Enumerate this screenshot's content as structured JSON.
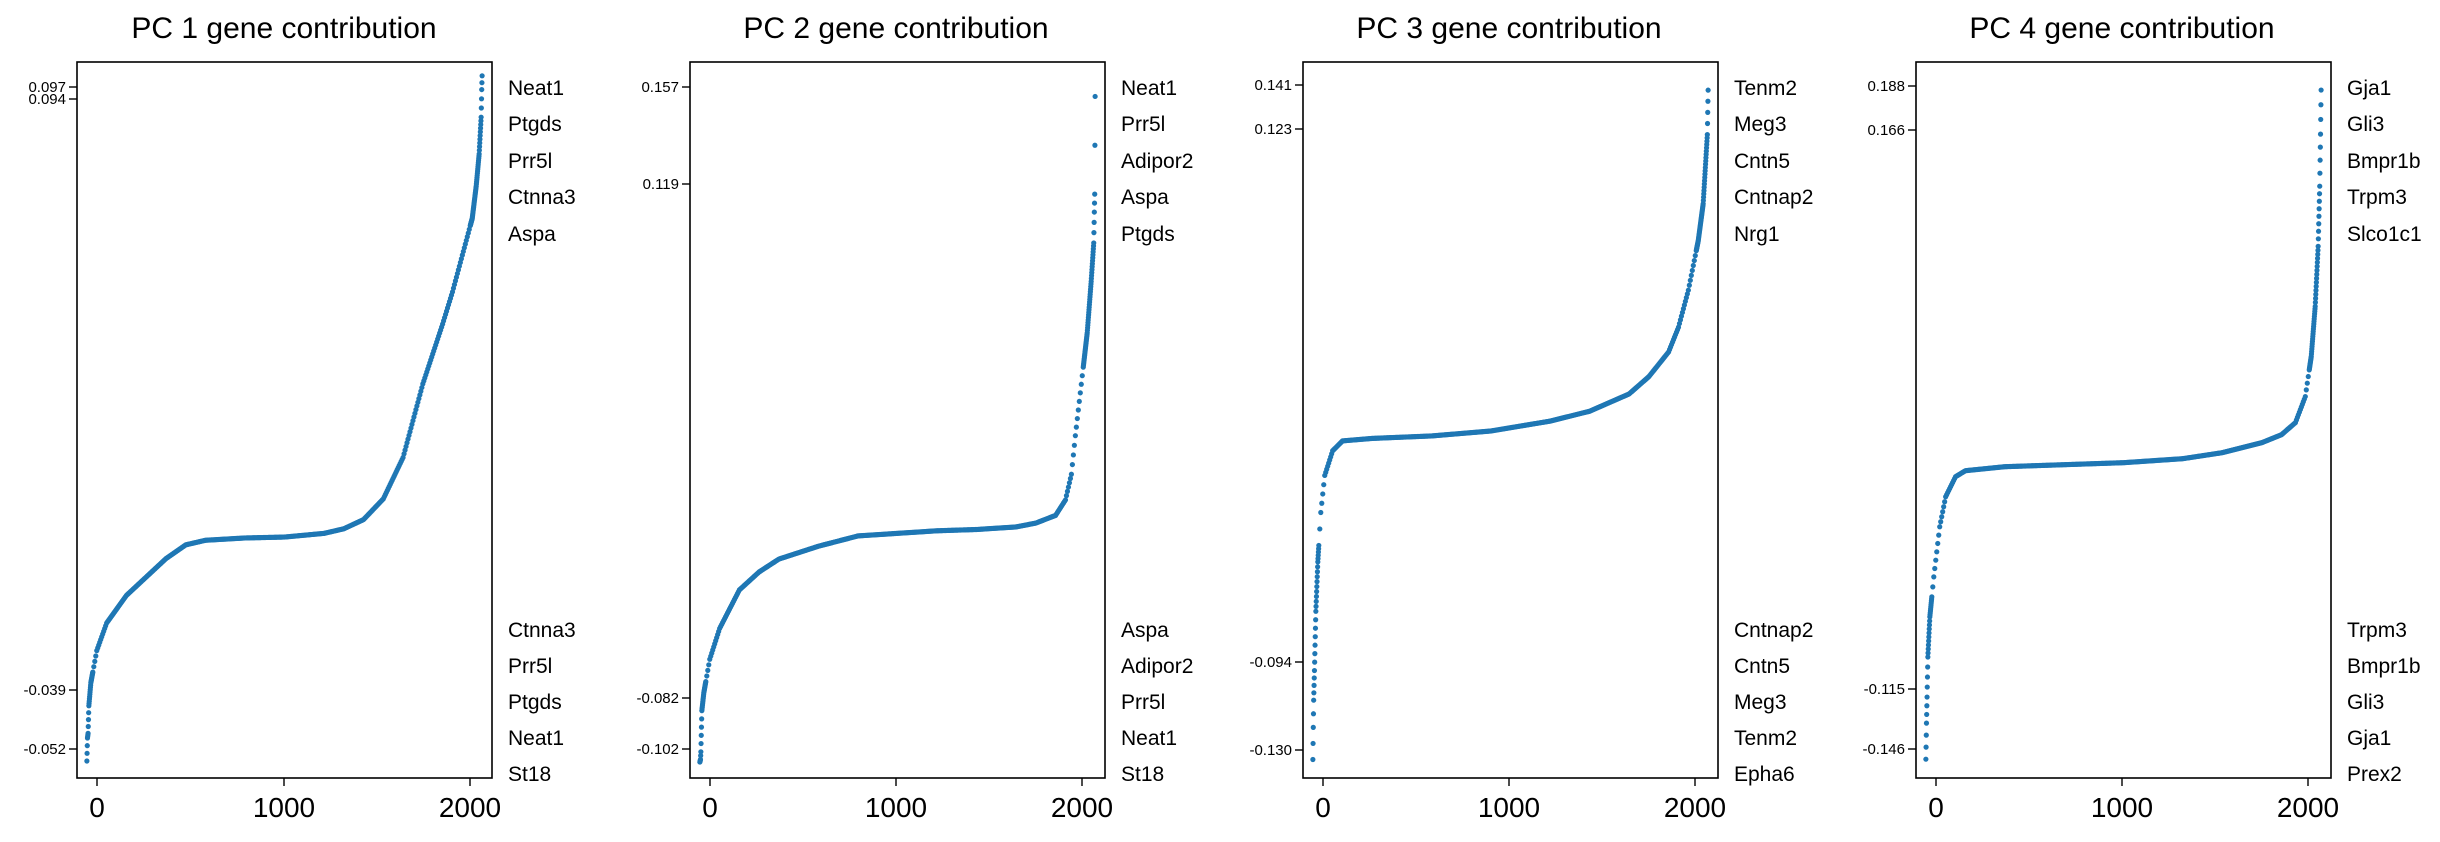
{
  "chart_data": [
    {
      "type": "scatter",
      "title": "PC 1 gene contribution",
      "xlim": [
        -50,
        2050
      ],
      "ylim": [
        -0.0557,
        0.1
      ],
      "xticks": [
        "0",
        "1000",
        "2000"
      ],
      "yticks": [
        "0.097",
        "0.094",
        "-0.039",
        "-0.052"
      ],
      "top_genes": [
        "Neat1",
        "Ptgds",
        "Prr5l",
        "Ctnna3",
        "Aspa"
      ],
      "bottom_genes": [
        "Ctnna3",
        "Prr5l",
        "Ptgds",
        "Neat1",
        "St18"
      ],
      "curve": [
        [
          0,
          -0.052
        ],
        [
          3,
          -0.047
        ],
        [
          6,
          -0.046
        ],
        [
          10,
          -0.04
        ],
        [
          20,
          -0.035
        ],
        [
          50,
          -0.028
        ],
        [
          100,
          -0.022
        ],
        [
          200,
          -0.016
        ],
        [
          300,
          -0.012
        ],
        [
          400,
          -0.008
        ],
        [
          500,
          -0.005
        ],
        [
          600,
          -0.004
        ],
        [
          800,
          -0.0035
        ],
        [
          1000,
          -0.0033
        ],
        [
          1200,
          -0.0025
        ],
        [
          1300,
          -0.0015
        ],
        [
          1400,
          0.0005
        ],
        [
          1500,
          0.005
        ],
        [
          1600,
          0.014
        ],
        [
          1700,
          0.03
        ],
        [
          1800,
          0.043
        ],
        [
          1850,
          0.05
        ],
        [
          1900,
          0.058
        ],
        [
          1950,
          0.066
        ],
        [
          1970,
          0.073
        ],
        [
          1985,
          0.08
        ],
        [
          1995,
          0.088
        ],
        [
          1998,
          0.094
        ],
        [
          2000,
          0.097
        ]
      ],
      "color": "#1f77b4"
    },
    {
      "type": "scatter",
      "title": "PC 2 gene contribution",
      "xlim": [
        -50,
        2050
      ],
      "ylim": [
        -0.1082,
        0.1704
      ],
      "xticks": [
        "0",
        "1000",
        "2000"
      ],
      "yticks": [
        "0.157",
        "0.119",
        "-0.082",
        "-0.102"
      ],
      "top_genes": [
        "Neat1",
        "Prr5l",
        "Adipor2",
        "Aspa",
        "Ptgds"
      ],
      "bottom_genes": [
        "Aspa",
        "Adipor2",
        "Prr5l",
        "Neat1",
        "St18"
      ],
      "curve": [
        [
          0,
          -0.102
        ],
        [
          3,
          -0.101
        ],
        [
          5,
          -0.098
        ],
        [
          10,
          -0.082
        ],
        [
          20,
          -0.075
        ],
        [
          50,
          -0.062
        ],
        [
          100,
          -0.05
        ],
        [
          200,
          -0.035
        ],
        [
          300,
          -0.028
        ],
        [
          400,
          -0.023
        ],
        [
          600,
          -0.018
        ],
        [
          800,
          -0.014
        ],
        [
          1000,
          -0.013
        ],
        [
          1200,
          -0.012
        ],
        [
          1400,
          -0.0115
        ],
        [
          1600,
          -0.0105
        ],
        [
          1700,
          -0.009
        ],
        [
          1800,
          -0.006
        ],
        [
          1850,
          0.0
        ],
        [
          1880,
          0.01
        ],
        [
          1900,
          0.025
        ],
        [
          1930,
          0.045
        ],
        [
          1960,
          0.065
        ],
        [
          1980,
          0.085
        ],
        [
          1993,
          0.1
        ],
        [
          1996,
          0.112
        ],
        [
          1998,
          0.119
        ],
        [
          2000,
          0.157
        ]
      ],
      "color": "#1f77b4"
    },
    {
      "type": "scatter",
      "title": "PC 3 gene contribution",
      "xlim": [
        -50,
        2050
      ],
      "ylim": [
        -0.1375,
        0.1524
      ],
      "xticks": [
        "0",
        "1000",
        "2000"
      ],
      "yticks": [
        "0.141",
        "0.123",
        "-0.094",
        "-0.130"
      ],
      "top_genes": [
        "Tenm2",
        "Meg3",
        "Cntn5",
        "Cntnap2",
        "Nrg1"
      ],
      "bottom_genes": [
        "Cntnap2",
        "Cntn5",
        "Meg3",
        "Tenm2",
        "Epha6"
      ],
      "curve": [
        [
          0,
          -0.13
        ],
        [
          2,
          -0.117
        ],
        [
          4,
          -0.106
        ],
        [
          8,
          -0.094
        ],
        [
          15,
          -0.07
        ],
        [
          25,
          -0.05
        ],
        [
          40,
          -0.03
        ],
        [
          60,
          -0.015
        ],
        [
          100,
          -0.005
        ],
        [
          150,
          -0.001
        ],
        [
          300,
          0.0
        ],
        [
          600,
          0.001
        ],
        [
          900,
          0.003
        ],
        [
          1200,
          0.007
        ],
        [
          1400,
          0.011
        ],
        [
          1600,
          0.018
        ],
        [
          1700,
          0.025
        ],
        [
          1800,
          0.035
        ],
        [
          1850,
          0.045
        ],
        [
          1900,
          0.06
        ],
        [
          1950,
          0.08
        ],
        [
          1975,
          0.095
        ],
        [
          1990,
          0.115
        ],
        [
          1996,
          0.123
        ],
        [
          2000,
          0.141
        ]
      ],
      "color": "#1f77b4"
    },
    {
      "type": "scatter",
      "title": "PC 4 gene contribution",
      "xlim": [
        -50,
        2050
      ],
      "ylim": [
        -0.1554,
        0.202
      ],
      "xticks": [
        "0",
        "1000",
        "2000"
      ],
      "yticks": [
        "0.188",
        "0.166",
        "-0.115",
        "-0.146"
      ],
      "top_genes": [
        "Gja1",
        "Gli3",
        "Bmpr1b",
        "Trpm3",
        "Slco1c1"
      ],
      "bottom_genes": [
        "Trpm3",
        "Bmpr1b",
        "Gli3",
        "Gja1",
        "Prex2"
      ],
      "curve": [
        [
          0,
          -0.146
        ],
        [
          3,
          -0.128
        ],
        [
          6,
          -0.115
        ],
        [
          10,
          -0.095
        ],
        [
          20,
          -0.075
        ],
        [
          40,
          -0.055
        ],
        [
          70,
          -0.03
        ],
        [
          100,
          -0.015
        ],
        [
          150,
          -0.005
        ],
        [
          200,
          -0.002
        ],
        [
          400,
          0.0
        ],
        [
          700,
          0.001
        ],
        [
          1000,
          0.002
        ],
        [
          1300,
          0.004
        ],
        [
          1500,
          0.007
        ],
        [
          1700,
          0.012
        ],
        [
          1800,
          0.016
        ],
        [
          1870,
          0.022
        ],
        [
          1920,
          0.035
        ],
        [
          1950,
          0.055
        ],
        [
          1970,
          0.08
        ],
        [
          1985,
          0.11
        ],
        [
          1993,
          0.14
        ],
        [
          1997,
          0.166
        ],
        [
          2000,
          0.188
        ]
      ],
      "color": "#1f77b4"
    }
  ]
}
